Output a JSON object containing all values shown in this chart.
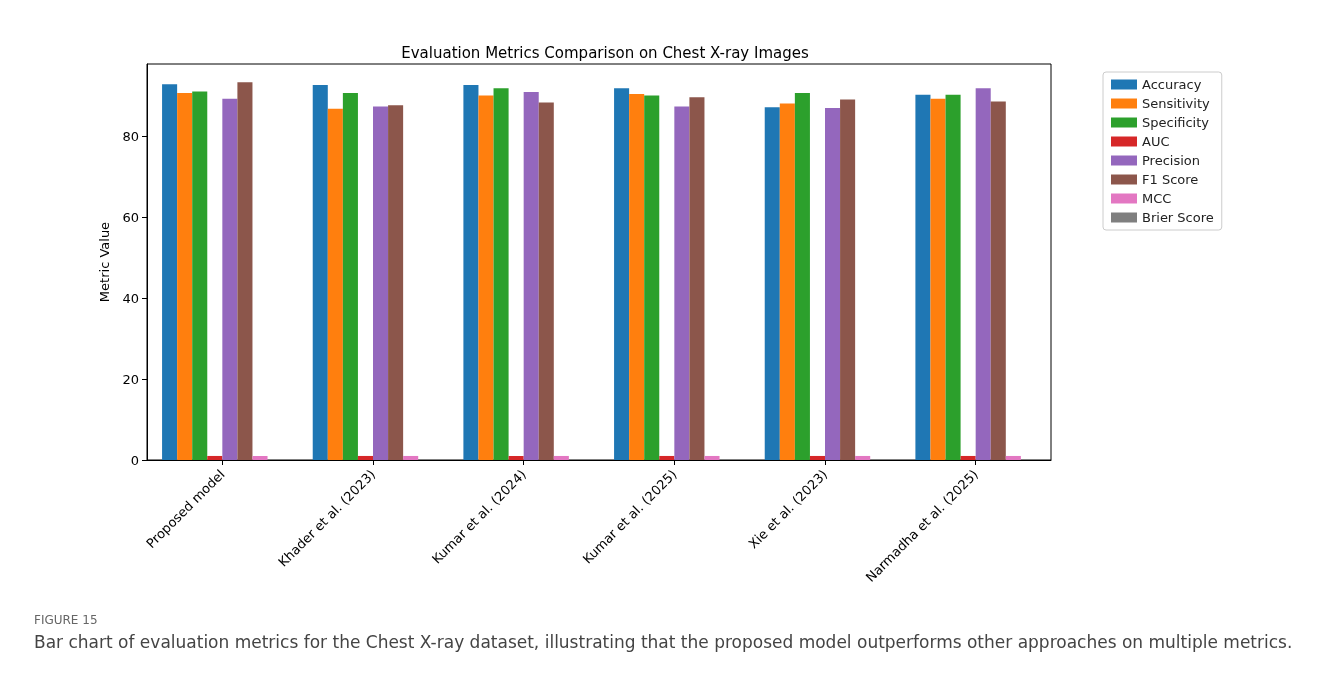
{
  "chart_data": {
    "type": "bar",
    "title": "Evaluation Metrics Comparison on Chest X-ray Images",
    "ylabel": "Metric Value",
    "categories": [
      "Proposed model",
      "Khader et al. (2023)",
      "Kumar et al. (2024)",
      "Kumar et al. (2025)",
      "Xie et al. (2023)",
      "Narmadha et al. (2025)"
    ],
    "series": [
      {
        "name": "Accuracy",
        "color": "#1f77b4",
        "values": [
          93.0,
          92.8,
          92.8,
          92.0,
          87.3,
          90.4
        ]
      },
      {
        "name": "Sensitivity",
        "color": "#ff7f0e",
        "values": [
          90.8,
          86.9,
          90.2,
          90.6,
          88.2,
          89.4
        ]
      },
      {
        "name": "Specificity",
        "color": "#2ca02c",
        "values": [
          91.2,
          90.8,
          92.0,
          90.2,
          90.8,
          90.4
        ]
      },
      {
        "name": "AUC",
        "color": "#d62728",
        "values": [
          1,
          1,
          1,
          1,
          1,
          1
        ]
      },
      {
        "name": "Precision",
        "color": "#9467bd",
        "values": [
          89.4,
          87.5,
          91.1,
          87.5,
          87.1,
          92.0
        ]
      },
      {
        "name": "F1 Score",
        "color": "#8c564b",
        "values": [
          93.5,
          87.8,
          88.5,
          89.8,
          89.2,
          88.7
        ]
      },
      {
        "name": "MCC",
        "color": "#e377c2",
        "values": [
          1,
          1,
          1,
          1,
          1,
          1
        ]
      },
      {
        "name": "Brier Score",
        "color": "#7f7f7f",
        "values": [
          0,
          0,
          0,
          0,
          0,
          0
        ]
      }
    ],
    "ylim": [
      0,
      98
    ],
    "yticks": [
      0,
      20,
      40,
      60,
      80
    ],
    "grid": false,
    "legend": "top right",
    "annotations": [
      "FIGURE 15",
      "Bar chart of evaluation metrics for the Chest X-ray dataset, illustrating that the proposed model outperforms other approaches on multiple metrics."
    ]
  }
}
